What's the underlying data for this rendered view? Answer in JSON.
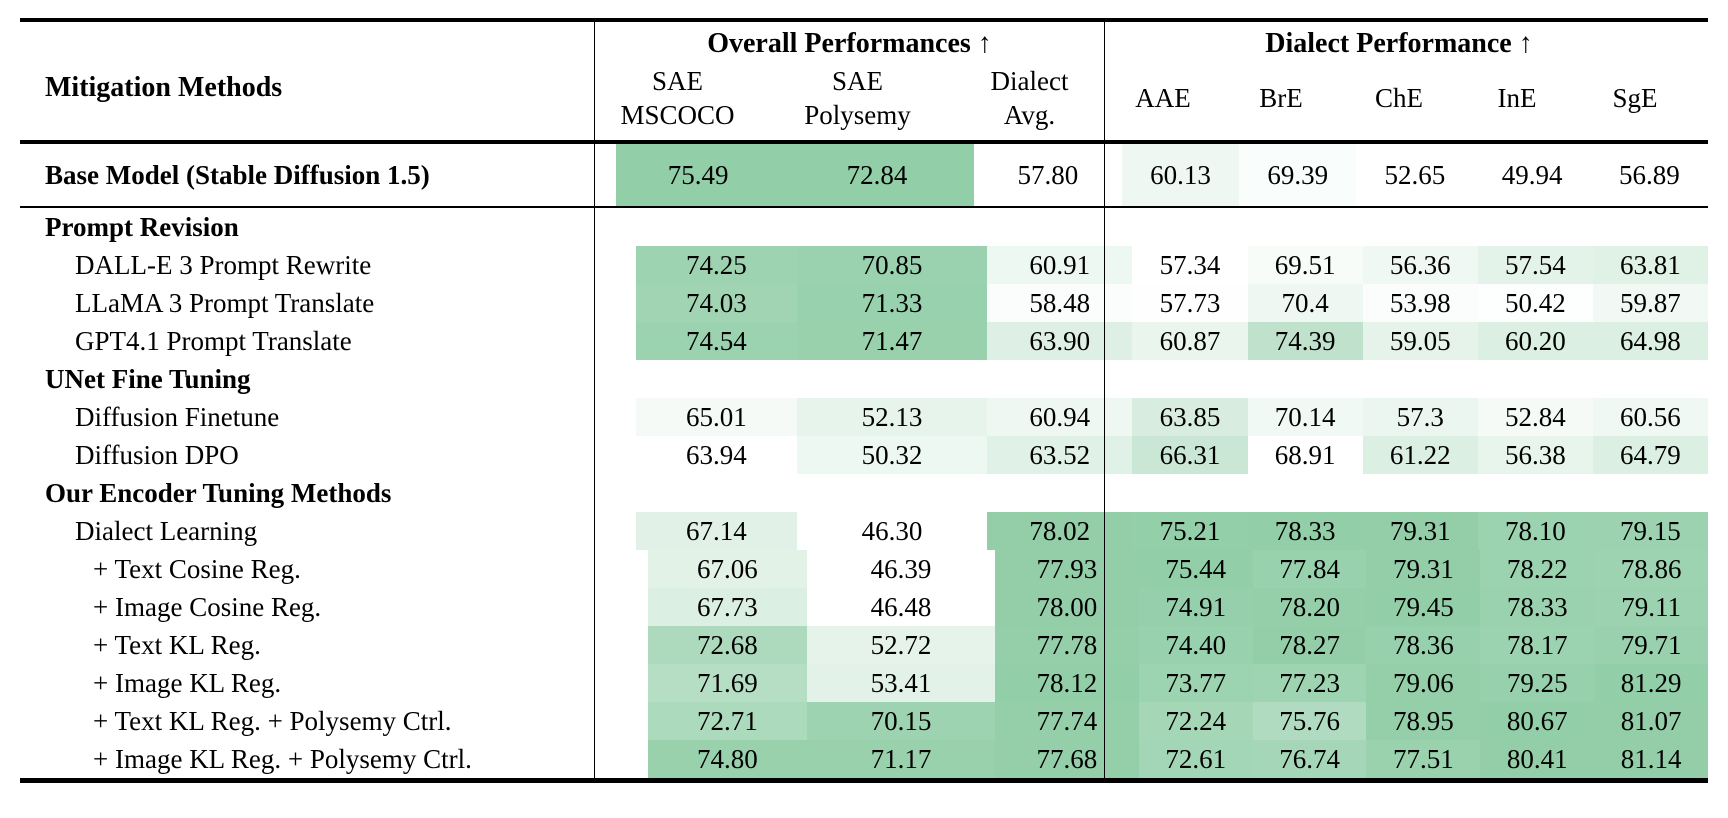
{
  "table": {
    "method_header": "Mitigation Methods",
    "groups": [
      {
        "label": "Overall Performances ↑"
      },
      {
        "label": "Dialect Performance ↑"
      }
    ],
    "columns": [
      {
        "id": "sae-mscoco",
        "group": 0,
        "lines": [
          "SAE",
          "MSCOCO"
        ]
      },
      {
        "id": "sae-polysemy",
        "group": 0,
        "lines": [
          "SAE",
          "Polysemy"
        ]
      },
      {
        "id": "dialect-avg",
        "group": 0,
        "lines": [
          "Dialect",
          "Avg."
        ]
      },
      {
        "id": "aae",
        "group": 1,
        "lines": [
          "AAE"
        ]
      },
      {
        "id": "bre",
        "group": 1,
        "lines": [
          "BrE"
        ]
      },
      {
        "id": "che",
        "group": 1,
        "lines": [
          "ChE"
        ]
      },
      {
        "id": "ine",
        "group": 1,
        "lines": [
          "InE"
        ]
      },
      {
        "id": "sge",
        "group": 1,
        "lines": [
          "SgE"
        ]
      }
    ],
    "heat": {
      "low_color": "#ffffff",
      "high_color": "#92cea8",
      "normalization": "per-column min-max"
    },
    "rows": [
      {
        "kind": "data",
        "bold": true,
        "base": true,
        "indent": 0,
        "label": "Base Model (Stable Diffusion 1.5)",
        "values": [
          "75.49",
          "72.84",
          "57.80",
          "60.13",
          "69.39",
          "52.65",
          "49.94",
          "56.89"
        ]
      },
      {
        "kind": "section",
        "label": "Prompt Revision"
      },
      {
        "kind": "data",
        "indent": 1,
        "label": "DALL-E 3 Prompt Rewrite",
        "values": [
          "74.25",
          "70.85",
          "60.91",
          "57.34",
          "69.51",
          "56.36",
          "57.54",
          "63.81"
        ]
      },
      {
        "kind": "data",
        "indent": 1,
        "label": "LLaMA 3 Prompt Translate",
        "values": [
          "74.03",
          "71.33",
          "58.48",
          "57.73",
          "70.4",
          "53.98",
          "50.42",
          "59.87"
        ]
      },
      {
        "kind": "data",
        "indent": 1,
        "label": "GPT4.1 Prompt Translate",
        "values": [
          "74.54",
          "71.47",
          "63.90",
          "60.87",
          "74.39",
          "59.05",
          "60.20",
          "64.98"
        ]
      },
      {
        "kind": "section",
        "label": "UNet Fine Tuning"
      },
      {
        "kind": "data",
        "indent": 1,
        "label": "Diffusion Finetune",
        "values": [
          "65.01",
          "52.13",
          "60.94",
          "63.85",
          "70.14",
          "57.3",
          "52.84",
          "60.56"
        ]
      },
      {
        "kind": "data",
        "indent": 1,
        "label": "Diffusion DPO",
        "values": [
          "63.94",
          "50.32",
          "63.52",
          "66.31",
          "68.91",
          "61.22",
          "56.38",
          "64.79"
        ]
      },
      {
        "kind": "section",
        "label": "Our Encoder Tuning Methods"
      },
      {
        "kind": "data",
        "indent": 1,
        "label": "Dialect Learning",
        "values": [
          "67.14",
          "46.30",
          "78.02",
          "75.21",
          "78.33",
          "79.31",
          "78.10",
          "79.15"
        ]
      },
      {
        "kind": "data",
        "indent": 2,
        "label": "+ Text Cosine Reg.",
        "values": [
          "67.06",
          "46.39",
          "77.93",
          "75.44",
          "77.84",
          "79.31",
          "78.22",
          "78.86"
        ]
      },
      {
        "kind": "data",
        "indent": 2,
        "label": "+ Image Cosine Reg.",
        "values": [
          "67.73",
          "46.48",
          "78.00",
          "74.91",
          "78.20",
          "79.45",
          "78.33",
          "79.11"
        ]
      },
      {
        "kind": "data",
        "indent": 2,
        "label": "+ Text KL Reg.",
        "values": [
          "72.68",
          "52.72",
          "77.78",
          "74.40",
          "78.27",
          "78.36",
          "78.17",
          "79.71"
        ]
      },
      {
        "kind": "data",
        "indent": 2,
        "label": "+ Image KL Reg.",
        "values": [
          "71.69",
          "53.41",
          "78.12",
          "73.77",
          "77.23",
          "79.06",
          "79.25",
          "81.29"
        ]
      },
      {
        "kind": "data",
        "indent": 2,
        "label": "+ Text KL Reg. + Polysemy Ctrl.",
        "values": [
          "72.71",
          "70.15",
          "77.74",
          "72.24",
          "75.76",
          "78.95",
          "80.67",
          "81.07"
        ]
      },
      {
        "kind": "data",
        "indent": 2,
        "label": "+ Image KL Reg. + Polysemy Ctrl.",
        "values": [
          "74.80",
          "71.17",
          "77.68",
          "72.61",
          "76.74",
          "77.51",
          "80.41",
          "81.14"
        ]
      }
    ]
  }
}
